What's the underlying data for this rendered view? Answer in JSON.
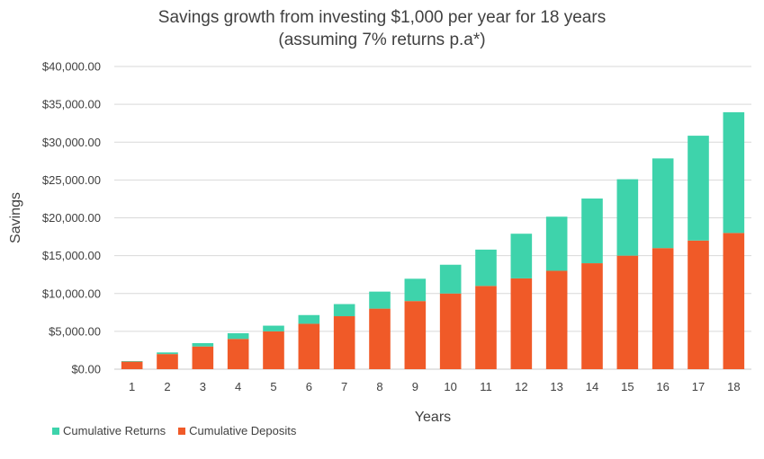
{
  "chart_data": {
    "type": "bar",
    "stacked": true,
    "title": "Savings growth from investing $1,000 per year for 18 years",
    "subtitle": "(assuming 7% returns p.a*)",
    "xlabel": "Years",
    "ylabel": "Savings",
    "ylim": [
      0,
      40000
    ],
    "yticks": [
      "$0.00",
      "$5,000.00",
      "$10,000.00",
      "$15,000.00",
      "$20,000.00",
      "$25,000.00",
      "$30,000.00",
      "$35,000.00",
      "$40,000.00"
    ],
    "grid": true,
    "legend_position": "bottom-left",
    "categories": [
      "1",
      "2",
      "3",
      "4",
      "5",
      "6",
      "7",
      "8",
      "9",
      "10",
      "11",
      "12",
      "13",
      "14",
      "15",
      "16",
      "17",
      "18"
    ],
    "series": [
      {
        "name": "Cumulative Deposits",
        "color": "#f05a28",
        "values": [
          1000,
          2000,
          3000,
          4000,
          5000,
          6000,
          7000,
          8000,
          9000,
          10000,
          11000,
          12000,
          13000,
          14000,
          15000,
          16000,
          17000,
          18000
        ]
      },
      {
        "name": "Cumulative Returns",
        "color": "#3ed3ab",
        "values": [
          70,
          215,
          440,
          750,
          750,
          1150,
          1600,
          2250,
          2950,
          3800,
          4800,
          5900,
          7150,
          8550,
          10100,
          11850,
          13850,
          15950
        ]
      }
    ]
  }
}
